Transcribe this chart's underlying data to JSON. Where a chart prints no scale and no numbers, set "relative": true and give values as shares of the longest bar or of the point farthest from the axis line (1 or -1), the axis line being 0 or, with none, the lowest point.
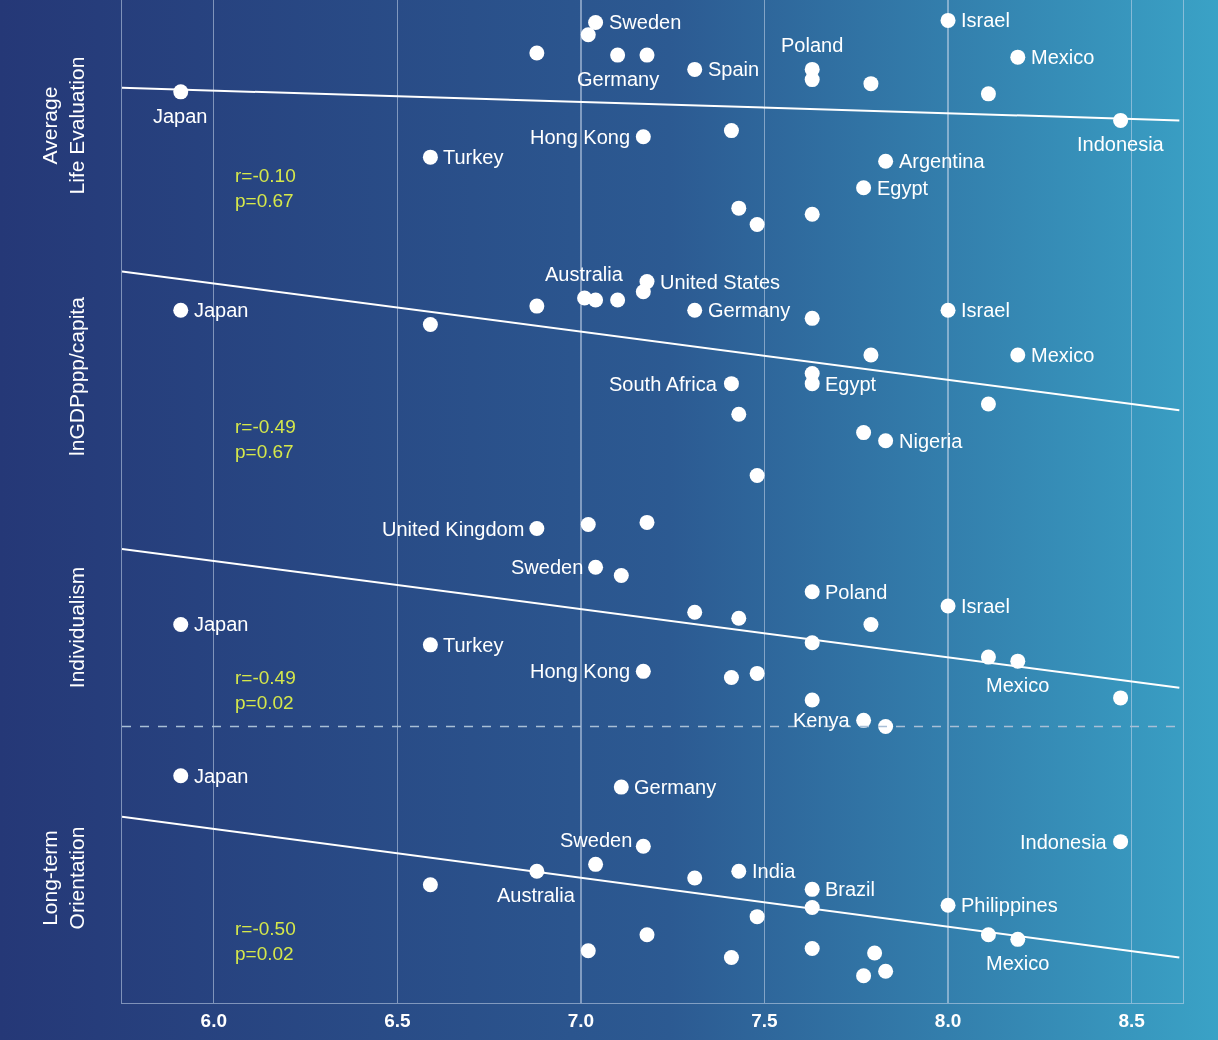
{
  "chart_data": [
    {
      "type": "scatter",
      "relative": true,
      "ylabel": "Average\nLife Evaluation",
      "xlim": [
        5.75,
        8.64
      ],
      "xticks": [
        {
          "value": 6,
          "label": null
        },
        {
          "value": 6.5,
          "label": null
        },
        {
          "value": 7,
          "label": null
        },
        {
          "value": 7.5,
          "label": null
        },
        {
          "value": 8,
          "label": null
        },
        {
          "value": 8.5,
          "label": null
        }
      ],
      "tick_labels": false,
      "grid": "x",
      "series": [
        {
          "type": "scatter",
          "marker": "circle",
          "color": "#ffffff",
          "x": [
            5.91,
            6.59,
            6.88,
            7.04,
            7.02,
            7.1,
            7.18,
            7.31,
            7.17,
            7.41,
            7.43,
            7.48,
            7.63,
            7.63,
            7.79,
            7.83,
            7.77,
            7.63,
            8.0,
            8.19,
            8.11,
            8.47
          ],
          "values": [
            0.65,
            0.33,
            0.84,
            0.99,
            0.93,
            0.83,
            0.83,
            0.76,
            0.43,
            0.46,
            0.08,
            0,
            0.76,
            0.71,
            0.69,
            0.31,
            0.18,
            0.05,
            1,
            0.82,
            0.64,
            0.51
          ]
        },
        {
          "type": "line",
          "color": "#ffffff",
          "x": [
            5.75,
            8.63
          ],
          "values": [
            0.67,
            0.51
          ]
        }
      ],
      "annotations": [
        {
          "text": "Japan",
          "x": 5.91,
          "y": 0.65
        },
        {
          "text": "Turkey",
          "x": 6.59,
          "y": 0.33
        },
        {
          "text": "Sweden",
          "x": 7.04,
          "y": 0.99
        },
        {
          "text": "Germany",
          "x": 7.1,
          "y": 0.83
        },
        {
          "text": "Spain",
          "x": 7.31,
          "y": 0.76
        },
        {
          "text": "Hong Kong",
          "x": 7.17,
          "y": 0.43
        },
        {
          "text": "Poland",
          "x": 7.63,
          "y": 0.76
        },
        {
          "text": "Argentina",
          "x": 7.83,
          "y": 0.31
        },
        {
          "text": "Egypt",
          "x": 7.77,
          "y": 0.18
        },
        {
          "text": "Israel",
          "x": 8.0,
          "y": 1
        },
        {
          "text": "Mexico",
          "x": 8.19,
          "y": 0.82
        },
        {
          "text": "Indonesia",
          "x": 8.47,
          "y": 0.51
        },
        "r=-0.10\np=0.67"
      ]
    },
    {
      "type": "scatter",
      "relative": true,
      "ylabel": "lnGDPppp/capita",
      "xlim": [
        5.75,
        8.64
      ],
      "xticks": [
        {
          "value": 6,
          "label": null
        },
        {
          "value": 6.5,
          "label": null
        },
        {
          "value": 7,
          "label": null
        },
        {
          "value": 7.5,
          "label": null
        },
        {
          "value": 8,
          "label": null
        },
        {
          "value": 8.5,
          "label": null
        }
      ],
      "tick_labels": false,
      "grid": "x",
      "series": [
        {
          "type": "scatter",
          "marker": "circle",
          "color": "#ffffff",
          "x": [
            5.91,
            6.59,
            6.88,
            7.01,
            7.04,
            7.1,
            7.17,
            7.18,
            7.31,
            7.63,
            8.0,
            7.79,
            8.19,
            7.41,
            7.63,
            7.63,
            7.43,
            8.11,
            7.77,
            7.83,
            7.48
          ],
          "values": [
            0.81,
            0.74,
            0.83,
            0.87,
            0.86,
            0.86,
            0.9,
            0.95,
            0.81,
            0.77,
            0.81,
            0.59,
            0.59,
            0.45,
            0.5,
            0.45,
            0.3,
            0.35,
            0.21,
            0.17,
            0
          ]
        },
        {
          "type": "line",
          "color": "#ffffff",
          "x": [
            5.75,
            8.63
          ],
          "values": [
            1,
            0.32
          ]
        }
      ],
      "annotations": [
        {
          "text": "Japan",
          "x": 5.91,
          "y": 0.81
        },
        {
          "text": "Australia",
          "x": 7.01,
          "y": 0.87
        },
        {
          "text": "United States",
          "x": 7.18,
          "y": 0.95
        },
        {
          "text": "Germany",
          "x": 7.31,
          "y": 0.81
        },
        {
          "text": "Israel",
          "x": 8.0,
          "y": 0.81
        },
        {
          "text": "Mexico",
          "x": 8.19,
          "y": 0.59
        },
        {
          "text": "South Africa",
          "x": 7.41,
          "y": 0.45
        },
        {
          "text": "Egypt",
          "x": 7.63,
          "y": 0.45
        },
        {
          "text": "Nigeria",
          "x": 7.83,
          "y": 0.17
        },
        "r=-0.49\np=0.67"
      ]
    },
    {
      "type": "scatter",
      "relative": true,
      "ylabel": "Individualism",
      "xlim": [
        5.75,
        8.64
      ],
      "xticks": [
        {
          "value": 6,
          "label": null
        },
        {
          "value": 6.5,
          "label": null
        },
        {
          "value": 7,
          "label": null
        },
        {
          "value": 7.5,
          "label": null
        },
        {
          "value": 8,
          "label": null
        },
        {
          "value": 8.5,
          "label": null
        }
      ],
      "tick_labels": false,
      "grid": "x",
      "series": [
        {
          "type": "scatter",
          "marker": "circle",
          "color": "#ffffff",
          "x": [
            6.88,
            7.02,
            7.18,
            7.04,
            7.11,
            7.63,
            8.0,
            7.31,
            7.43,
            5.91,
            7.79,
            6.59,
            7.63,
            8.11,
            8.19,
            7.17,
            7.41,
            7.48,
            7.63,
            7.77,
            7.83,
            8.47
          ],
          "values": [
            0.97,
            0.99,
            1,
            0.78,
            0.74,
            0.66,
            0.59,
            0.56,
            0.53,
            0.5,
            0.5,
            0.4,
            0.41,
            0.34,
            0.32,
            0.27,
            0.24,
            0.26,
            0.13,
            0.03,
            0,
            0.14
          ]
        },
        {
          "type": "line",
          "color": "#ffffff",
          "x": [
            5.75,
            8.63
          ],
          "values": [
            0.87,
            0.19
          ]
        }
      ],
      "ref_lines": [
        {
          "axis": "y",
          "value": 0,
          "line_style": "dashed",
          "color": "#a9bfd6"
        }
      ],
      "annotations": [
        {
          "text": "United Kingdom",
          "x": 6.88,
          "y": 0.97
        },
        {
          "text": "Japan",
          "x": 5.91,
          "y": 0.5
        },
        {
          "text": "Sweden",
          "x": 7.04,
          "y": 0.78
        },
        {
          "text": "Poland",
          "x": 7.63,
          "y": 0.66
        },
        {
          "text": "Israel",
          "x": 8.0,
          "y": 0.59
        },
        {
          "text": "Turkey",
          "x": 6.59,
          "y": 0.4
        },
        {
          "text": "Mexico",
          "x": 8.19,
          "y": 0.32
        },
        {
          "text": "Hong Kong",
          "x": 7.17,
          "y": 0.27
        },
        {
          "text": "Kenya",
          "x": 7.77,
          "y": 0.03
        },
        "r=-0.49\np=0.02"
      ]
    },
    {
      "type": "scatter",
      "relative": true,
      "ylabel": "Long-term\nOrientation",
      "xlim": [
        5.75,
        8.64
      ],
      "xticks": [
        {
          "value": 6,
          "label": "6.0"
        },
        {
          "value": 6.5,
          "label": "6.5"
        },
        {
          "value": 7,
          "label": "7.0"
        },
        {
          "value": 7.5,
          "label": "7.5"
        },
        {
          "value": 8,
          "label": "8.0"
        },
        {
          "value": 8.5,
          "label": "8.5"
        }
      ],
      "tick_labels": "x",
      "grid": "x",
      "series": [
        {
          "type": "scatter",
          "marker": "circle",
          "color": "#ffffff",
          "x": [
            5.91,
            7.11,
            7.17,
            8.47,
            7.43,
            6.59,
            6.88,
            7.04,
            7.31,
            7.63,
            7.63,
            8.0,
            7.48,
            8.11,
            8.19,
            7.18,
            7.02,
            7.41,
            7.63,
            7.8,
            7.77,
            7.83
          ],
          "values": [
            1,
            0.95,
            0.69,
            0.71,
            0.58,
            0.52,
            0.58,
            0.61,
            0.55,
            0.5,
            0.42,
            0.43,
            0.38,
            0.3,
            0.28,
            0.3,
            0.23,
            0.2,
            0.24,
            0.22,
            0.12,
            0.14
          ]
        },
        {
          "type": "line",
          "color": "#ffffff",
          "x": [
            5.75,
            8.63
          ],
          "values": [
            0.82,
            0.2
          ]
        }
      ],
      "annotations": [
        {
          "text": "Japan",
          "x": 5.91,
          "y": 1
        },
        {
          "text": "Germany",
          "x": 7.11,
          "y": 0.95
        },
        {
          "text": "Indonesia",
          "x": 8.47,
          "y": 0.71
        },
        {
          "text": "India",
          "x": 7.43,
          "y": 0.58
        },
        {
          "text": "Australia",
          "x": 6.88,
          "y": 0.58
        },
        {
          "text": "Sweden",
          "x": 7.04,
          "y": 0.61
        },
        {
          "text": "Brazil",
          "x": 7.63,
          "y": 0.5
        },
        {
          "text": "Philippines",
          "x": 8.0,
          "y": 0.43
        },
        {
          "text": "Mexico",
          "x": 8.19,
          "y": 0.28
        },
        "r=-0.50\np=0.02"
      ]
    }
  ]
}
